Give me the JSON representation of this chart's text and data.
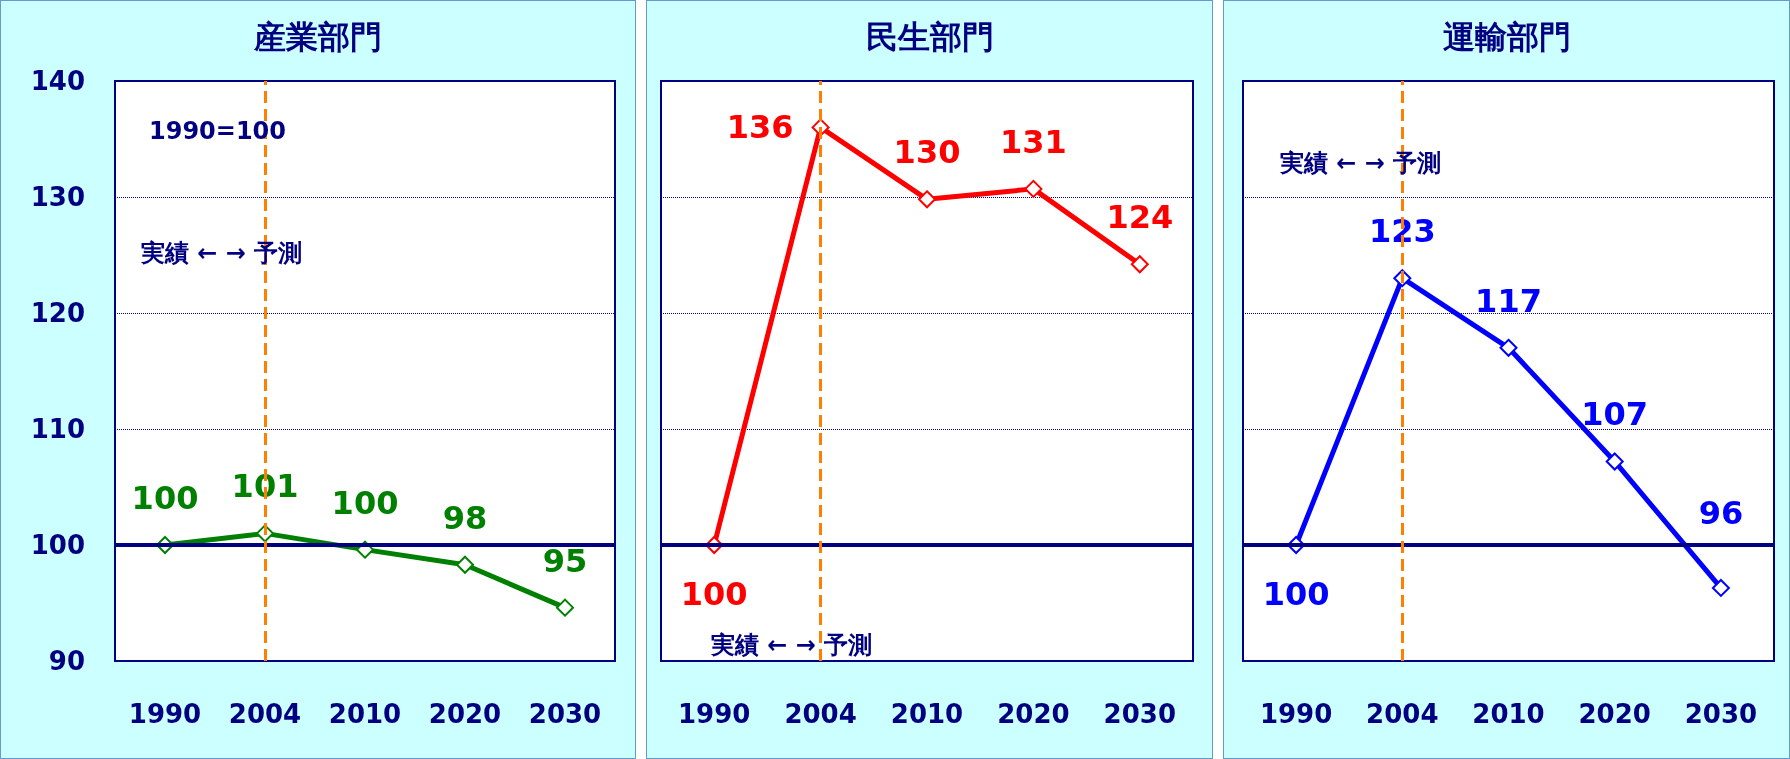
{
  "chart_data": [
    {
      "type": "line",
      "title": "産業部門",
      "categories": [
        "1990",
        "2004",
        "2010",
        "2020",
        "2030"
      ],
      "series": [
        {
          "color": "#008000",
          "values": [
            100,
            101,
            99.6,
            98.3,
            94.6
          ],
          "value_labels": [
            "100",
            "101",
            "100",
            "98",
            "95"
          ]
        }
      ],
      "ylim": [
        90,
        140
      ],
      "yticks": [
        90,
        100,
        110,
        120,
        130,
        140
      ],
      "grid": "y",
      "marker": "diamond",
      "line_style": "solid",
      "ref_lines": [
        {
          "axis": "y",
          "value": 100,
          "color": "#000080",
          "line_style": "solid"
        },
        {
          "axis": "x",
          "value": "2004",
          "color": "#ff8000",
          "line_style": "dashed"
        }
      ],
      "annotations": [
        "1990=100",
        "実績 ← → 予測"
      ]
    },
    {
      "type": "line",
      "title": "民生部門",
      "categories": [
        "1990",
        "2004",
        "2010",
        "2020",
        "2030"
      ],
      "series": [
        {
          "color": "#ff0000",
          "values": [
            100,
            136,
            129.8,
            130.7,
            124.2
          ],
          "value_labels": [
            "100",
            "136",
            "130",
            "131",
            "124"
          ]
        }
      ],
      "ylim": [
        90,
        140
      ],
      "yticks": [
        90,
        100,
        110,
        120,
        130,
        140
      ],
      "tick_labels": "x",
      "grid": "y",
      "marker": "diamond",
      "line_style": "solid",
      "ref_lines": [
        {
          "axis": "y",
          "value": 100,
          "color": "#000080",
          "line_style": "solid"
        },
        {
          "axis": "x",
          "value": "2004",
          "color": "#ff8000",
          "line_style": "dashed"
        }
      ],
      "annotations": [
        "実績 ← → 予測"
      ]
    },
    {
      "type": "line",
      "title": "運輸部門",
      "categories": [
        "1990",
        "2004",
        "2010",
        "2020",
        "2030"
      ],
      "series": [
        {
          "color": "#0000ff",
          "values": [
            100,
            123,
            117,
            107.2,
            96.3
          ],
          "value_labels": [
            "100",
            "123",
            "117",
            "107",
            "96"
          ]
        }
      ],
      "ylim": [
        90,
        140
      ],
      "yticks": [
        90,
        100,
        110,
        120,
        130,
        140
      ],
      "tick_labels": "x",
      "grid": "y",
      "marker": "diamond",
      "line_style": "solid",
      "ref_lines": [
        {
          "axis": "y",
          "value": 100,
          "color": "#000080",
          "line_style": "solid"
        },
        {
          "axis": "x",
          "value": "2004",
          "color": "#ff8000",
          "line_style": "dashed"
        }
      ],
      "annotations": [
        "実績 ← → 予測"
      ]
    }
  ]
}
